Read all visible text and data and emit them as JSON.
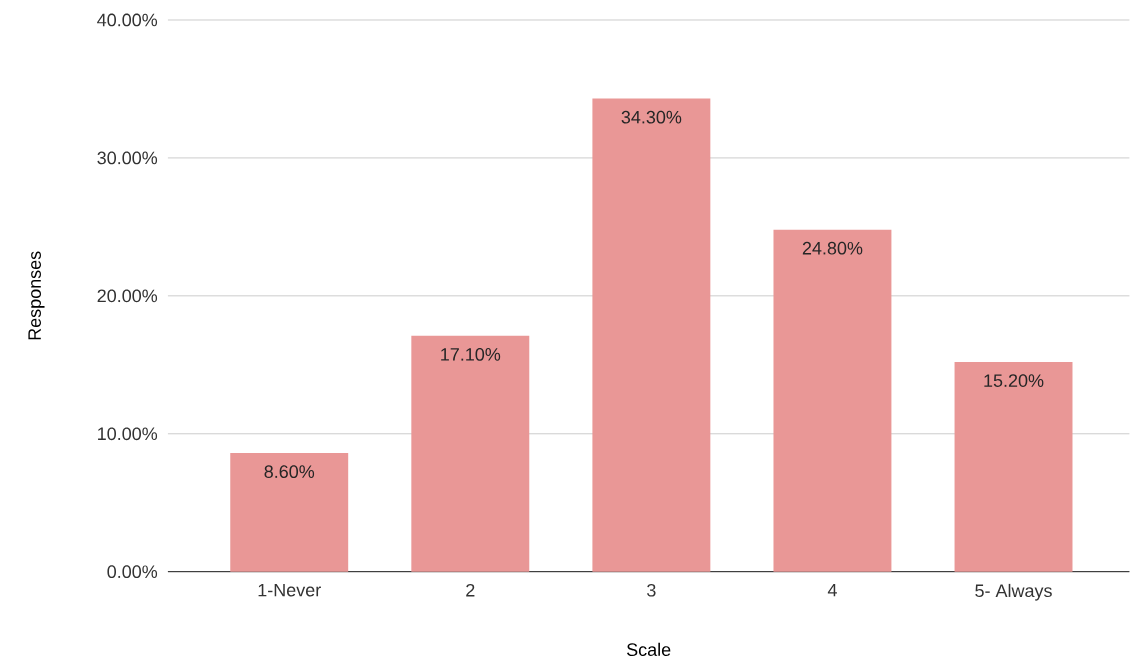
{
  "chart_data": {
    "type": "bar",
    "xlabel": "Scale",
    "ylabel": "Responses",
    "categories": [
      "1-Never",
      "2",
      "3",
      "4",
      "5- Always"
    ],
    "values": [
      8.6,
      17.1,
      34.3,
      24.8,
      15.2
    ],
    "value_labels": [
      "8.60%",
      "17.10%",
      "34.30%",
      "24.80%",
      "15.20%"
    ],
    "color": "#e99796",
    "ylim": [
      0,
      40
    ],
    "yticks": [
      {
        "value": 0,
        "label": "0.00%"
      },
      {
        "value": 10,
        "label": "10.00%"
      },
      {
        "value": 20,
        "label": "20.00%"
      },
      {
        "value": 30,
        "label": "30.00%"
      },
      {
        "value": 40,
        "label": "40.00%"
      }
    ],
    "grid": "y"
  }
}
